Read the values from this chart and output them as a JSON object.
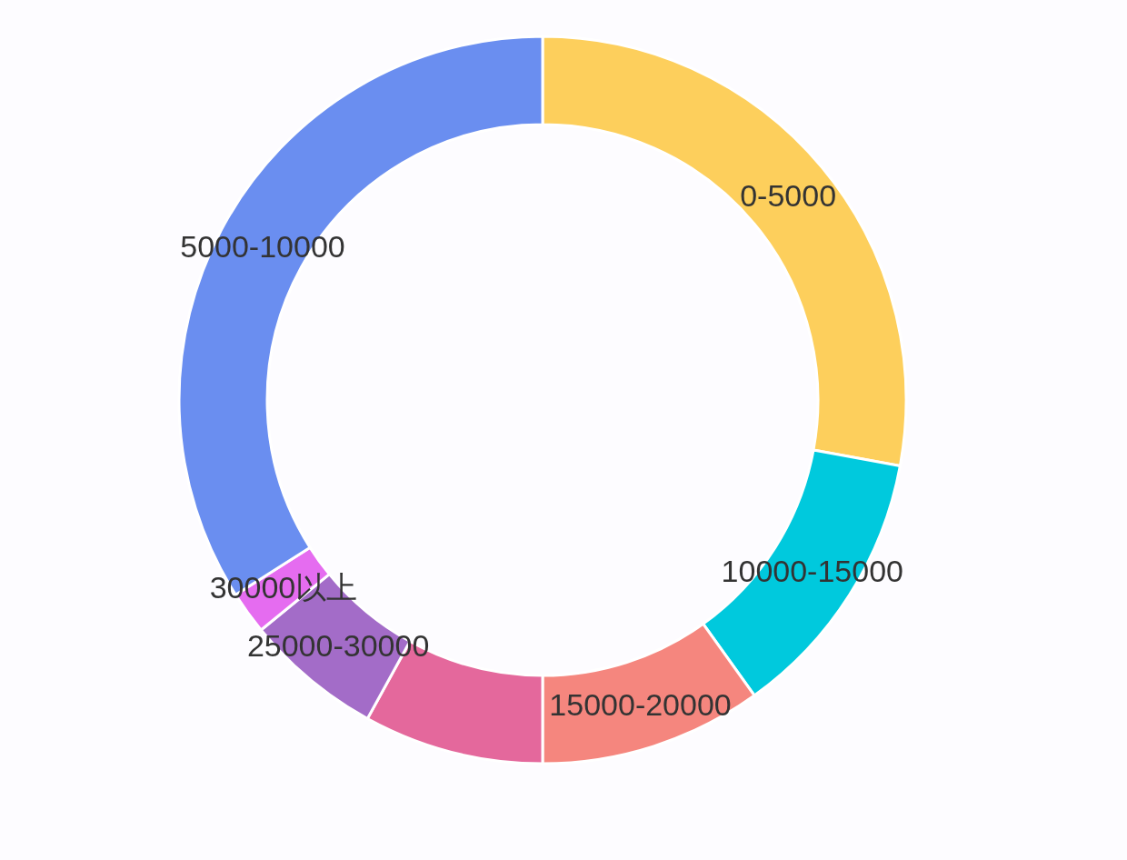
{
  "chart_data": {
    "type": "donut",
    "categories": [
      "0-5000",
      "10000-15000",
      "15000-20000",
      null,
      "25000-30000",
      "30000以上",
      "5000-10000"
    ],
    "values": [
      27.9,
      12.2,
      9.9,
      8.0,
      6.1,
      1.9,
      34.0
    ],
    "colors": [
      "#fdcf5c",
      "#00c9dd",
      "#f5867e",
      "#e4689c",
      "#a36cc8",
      "#e56cf0",
      "#6a8ef0"
    ]
  }
}
